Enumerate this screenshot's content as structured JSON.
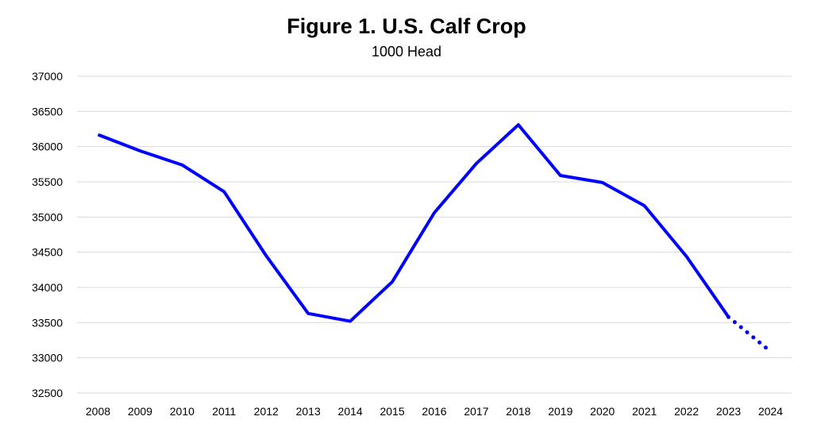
{
  "chart_data": {
    "type": "line",
    "title": "Figure 1. U.S. Calf Crop",
    "subtitle": "1000 Head",
    "xlabel": "",
    "ylabel": "",
    "ylim": [
      32500,
      37000
    ],
    "yticks": [
      32500,
      33000,
      33500,
      34000,
      34500,
      35000,
      35500,
      36000,
      36500,
      37000
    ],
    "grid": true,
    "legend": "none",
    "categories": [
      "2008",
      "2009",
      "2010",
      "2011",
      "2012",
      "2013",
      "2014",
      "2015",
      "2016",
      "2017",
      "2018",
      "2019",
      "2020",
      "2021",
      "2022",
      "2023",
      "2024"
    ],
    "series": [
      {
        "name": "Calf Crop",
        "color": "#0000FF",
        "values": [
          36170,
          35940,
          35740,
          35360,
          34450,
          33630,
          33520,
          34080,
          35060,
          35760,
          36310,
          35590,
          35490,
          35160,
          34440,
          33580,
          33090
        ],
        "projected_from_index": 15
      }
    ]
  }
}
